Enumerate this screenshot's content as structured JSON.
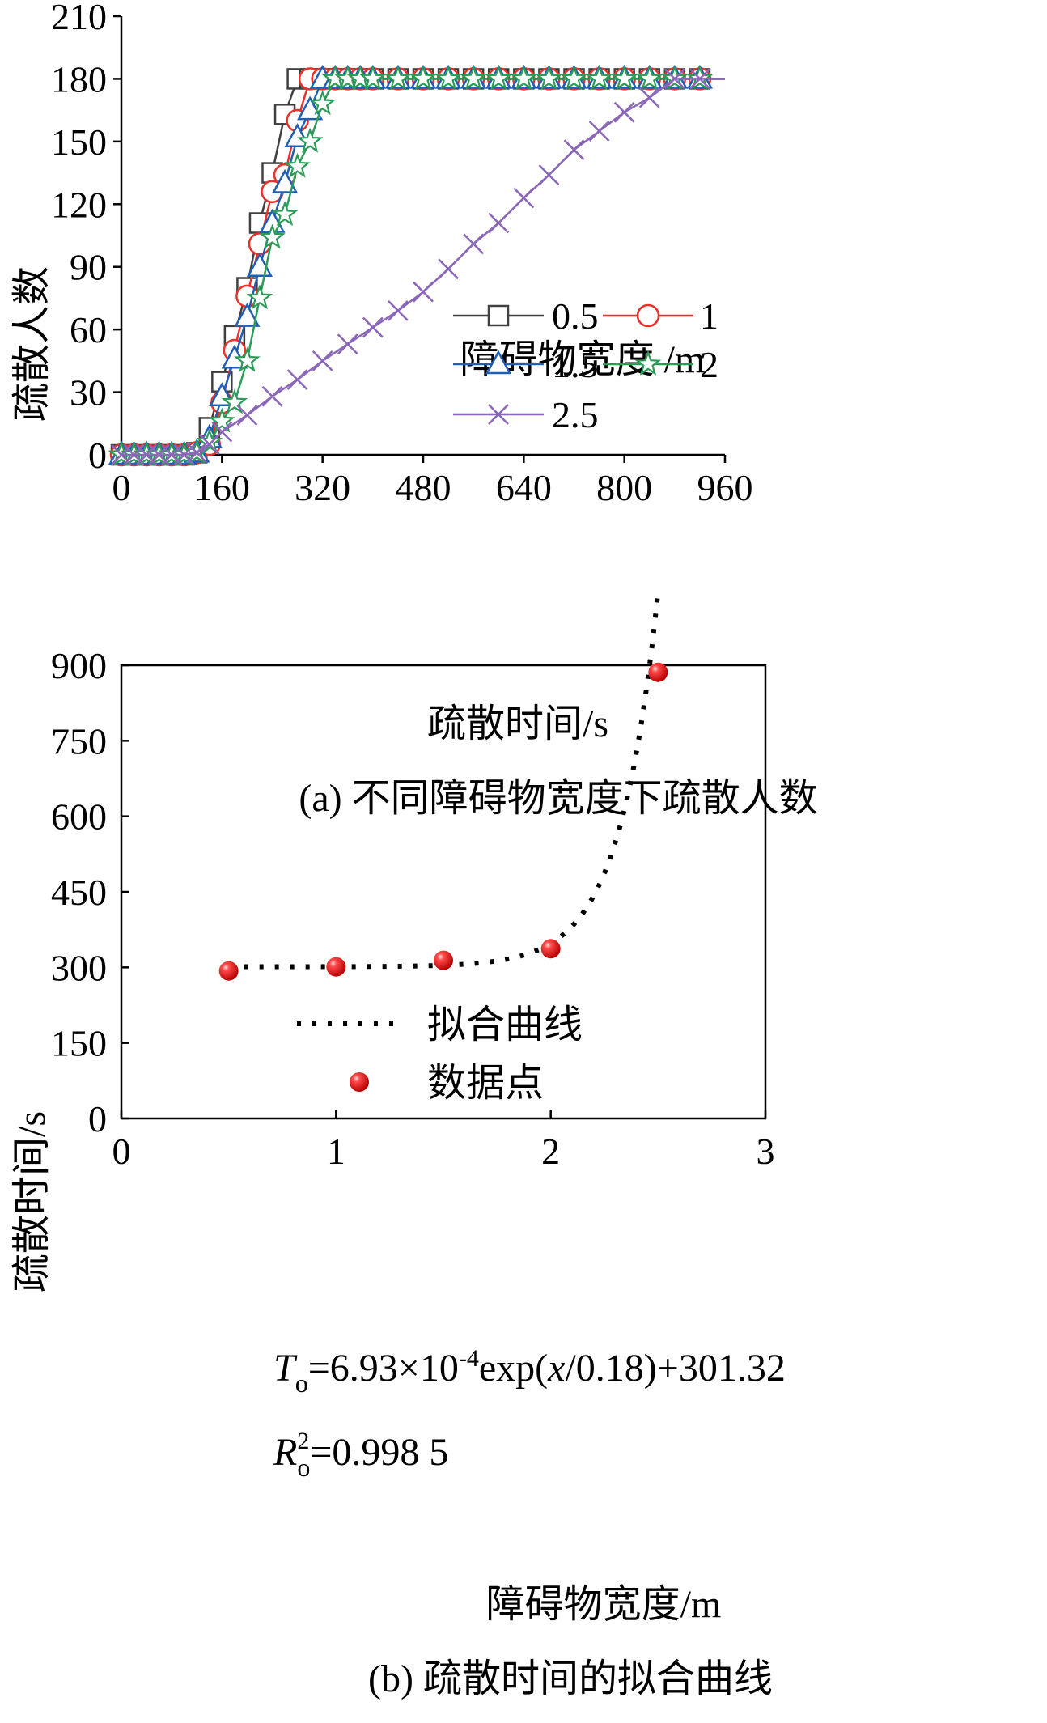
{
  "chart_data": [
    {
      "type": "line",
      "caption": "(a) 不同障碍物宽度下疏散人数",
      "xlabel": "疏散时间/s",
      "ylabel": "疏散人数",
      "xlim": [
        0,
        960
      ],
      "ylim": [
        0,
        210
      ],
      "xticks": [
        0,
        160,
        320,
        480,
        640,
        800,
        960
      ],
      "yticks": [
        0,
        30,
        60,
        90,
        120,
        150,
        180,
        210
      ],
      "legend_title": "障碍物宽度 /m",
      "legend_position": "center-right",
      "series": [
        {
          "name": "0.5",
          "color": "#404040",
          "marker": "square",
          "x": [
            0,
            20,
            40,
            60,
            80,
            100,
            120,
            140,
            160,
            180,
            200,
            220,
            240,
            260,
            280,
            300,
            320,
            340,
            360,
            380,
            400,
            960
          ],
          "y": [
            0,
            0,
            0,
            0,
            0,
            0,
            1,
            13,
            35,
            57,
            80,
            111,
            135,
            163,
            180,
            180,
            180,
            180,
            180,
            180,
            180,
            180
          ]
        },
        {
          "name": "1",
          "color": "#e8312a",
          "marker": "circle",
          "x": [
            0,
            20,
            40,
            60,
            80,
            100,
            120,
            140,
            160,
            180,
            200,
            220,
            240,
            260,
            280,
            300,
            320,
            340,
            360,
            380,
            400,
            960
          ],
          "y": [
            0,
            0,
            0,
            0,
            0,
            0,
            1,
            5,
            25,
            50,
            76,
            101,
            126,
            134,
            160,
            180,
            180,
            180,
            180,
            180,
            180,
            180
          ]
        },
        {
          "name": "1.5",
          "color": "#1f5fb4",
          "marker": "triangle",
          "x": [
            0,
            20,
            40,
            60,
            80,
            100,
            120,
            140,
            160,
            180,
            200,
            220,
            240,
            260,
            280,
            300,
            320,
            340,
            360,
            380,
            400,
            960
          ],
          "y": [
            0,
            0,
            0,
            0,
            0,
            0,
            1,
            8,
            28,
            46,
            66,
            90,
            111,
            130,
            152,
            165,
            180,
            180,
            180,
            180,
            180,
            180
          ]
        },
        {
          "name": "2",
          "color": "#2b9b57",
          "marker": "star",
          "x": [
            0,
            20,
            40,
            60,
            80,
            100,
            120,
            140,
            160,
            180,
            200,
            220,
            240,
            260,
            280,
            300,
            320,
            340,
            360,
            380,
            400,
            960
          ],
          "y": [
            0,
            0,
            0,
            0,
            0,
            0,
            1,
            6,
            16,
            25,
            45,
            75,
            104,
            115,
            138,
            150,
            168,
            180,
            180,
            180,
            180,
            180
          ]
        },
        {
          "name": "2.5",
          "color": "#8a67b8",
          "marker": "cross",
          "x": [
            0,
            20,
            40,
            60,
            80,
            100,
            120,
            140,
            160,
            200,
            240,
            280,
            320,
            360,
            400,
            440,
            480,
            520,
            560,
            600,
            640,
            680,
            720,
            760,
            800,
            840,
            880,
            960
          ],
          "y": [
            0,
            0,
            0,
            0,
            0,
            0,
            1,
            5,
            11,
            19,
            28,
            36,
            45,
            53,
            61,
            69,
            78,
            89,
            101,
            111,
            123,
            134,
            146,
            155,
            164,
            171,
            180,
            180
          ]
        }
      ]
    },
    {
      "type": "scatter",
      "caption": "(b) 疏散时间的拟合曲线",
      "xlabel": "障碍物宽度/m",
      "ylabel": "疏散时间/s",
      "xlim": [
        0,
        3
      ],
      "ylim": [
        0,
        900
      ],
      "xticks": [
        0,
        1,
        2,
        3
      ],
      "yticks": [
        0,
        150,
        300,
        450,
        600,
        750,
        900
      ],
      "legend_position": "top-left",
      "series": [
        {
          "name": "拟合曲线",
          "style": "dotted",
          "color": "#000000",
          "formula": {
            "a": 0.000693,
            "b": 0.18,
            "c": 301.32
          }
        },
        {
          "name": "数据点",
          "style": "marker",
          "color": "#e61e1e",
          "x": [
            0.5,
            1.0,
            1.5,
            2.0,
            2.5
          ],
          "y": [
            293,
            301,
            314,
            337,
            886
          ]
        }
      ],
      "annotations": {
        "eq_lhs": "T",
        "eq_sub": "o",
        "eq_part1": "=6.93×10",
        "eq_exp": "-4",
        "eq_part2": "exp(",
        "eq_var": "x",
        "eq_part3": "/0.18)+301.32",
        "r_lhs": "R",
        "r_sup": "2",
        "r_sub": "o",
        "r_value": "=0.998 5"
      }
    }
  ]
}
